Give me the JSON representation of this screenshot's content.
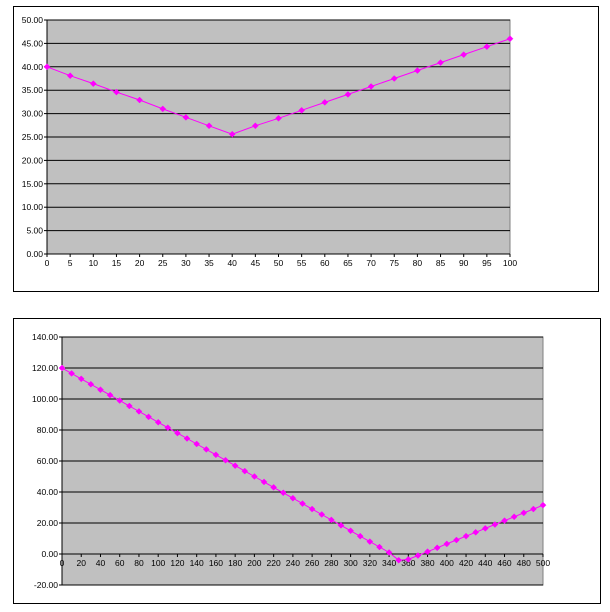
{
  "chart_data": [
    {
      "type": "line",
      "title": "",
      "xlabel": "",
      "ylabel": "",
      "xlim": [
        0,
        100
      ],
      "ylim": [
        0,
        50
      ],
      "x_ticks": [
        0,
        5,
        10,
        15,
        20,
        25,
        30,
        35,
        40,
        45,
        50,
        55,
        60,
        65,
        70,
        75,
        80,
        85,
        90,
        95,
        100
      ],
      "y_ticks": [
        "0.00",
        "5.00",
        "10.00",
        "15.00",
        "20.00",
        "25.00",
        "30.00",
        "35.00",
        "40.00",
        "45.00",
        "50.00"
      ],
      "grid": "horizontal",
      "legend": "none",
      "plot_background": "#c0c0c0",
      "series": [
        {
          "color": "#ff00ff",
          "marker": "diamond",
          "x": [
            0,
            5,
            10,
            15,
            20,
            25,
            30,
            35,
            40,
            45,
            50,
            55,
            60,
            65,
            70,
            75,
            80,
            85,
            90,
            95,
            100
          ],
          "values": [
            40.0,
            38.1,
            36.4,
            34.6,
            32.9,
            31.0,
            29.2,
            27.4,
            25.6,
            27.4,
            29.0,
            30.7,
            32.4,
            34.1,
            35.8,
            37.5,
            39.2,
            40.9,
            42.6,
            44.3,
            46.0
          ]
        }
      ]
    },
    {
      "type": "line",
      "title": "",
      "xlabel": "",
      "ylabel": "",
      "xlim": [
        0,
        500
      ],
      "ylim": [
        -20,
        140
      ],
      "x_ticks": [
        0,
        20,
        40,
        60,
        80,
        100,
        120,
        140,
        160,
        180,
        200,
        220,
        240,
        260,
        280,
        300,
        320,
        340,
        360,
        380,
        400,
        420,
        440,
        460,
        480,
        500
      ],
      "y_ticks": [
        "-20.00",
        "0.00",
        "20.00",
        "40.00",
        "60.00",
        "80.00",
        "100.00",
        "120.00",
        "140.00"
      ],
      "grid": "horizontal",
      "legend": "none",
      "plot_background": "#c0c0c0",
      "series": [
        {
          "color": "#ff00ff",
          "marker": "diamond",
          "x": [
            0,
            10,
            20,
            30,
            40,
            50,
            60,
            70,
            80,
            90,
            100,
            110,
            120,
            130,
            140,
            150,
            160,
            170,
            180,
            190,
            200,
            210,
            220,
            230,
            240,
            250,
            260,
            270,
            280,
            290,
            300,
            310,
            320,
            330,
            340,
            350,
            360,
            370,
            380,
            390,
            400,
            410,
            420,
            430,
            440,
            450,
            460,
            470,
            480,
            490,
            500
          ],
          "values": [
            120.0,
            116.5,
            113.0,
            109.5,
            106.0,
            102.5,
            99.0,
            95.5,
            92.0,
            88.5,
            85.0,
            81.5,
            78.0,
            74.5,
            71.0,
            67.5,
            64.0,
            60.5,
            57.0,
            53.5,
            50.0,
            46.5,
            43.0,
            39.5,
            36.0,
            32.5,
            29.0,
            25.5,
            22.0,
            18.5,
            15.0,
            11.5,
            8.0,
            4.5,
            1.0,
            -4.0,
            -3.5,
            -1.0,
            1.5,
            4.0,
            6.5,
            9.0,
            11.5,
            14.0,
            16.5,
            19.0,
            21.5,
            24.0,
            26.5,
            29.0,
            31.5
          ]
        }
      ]
    }
  ]
}
